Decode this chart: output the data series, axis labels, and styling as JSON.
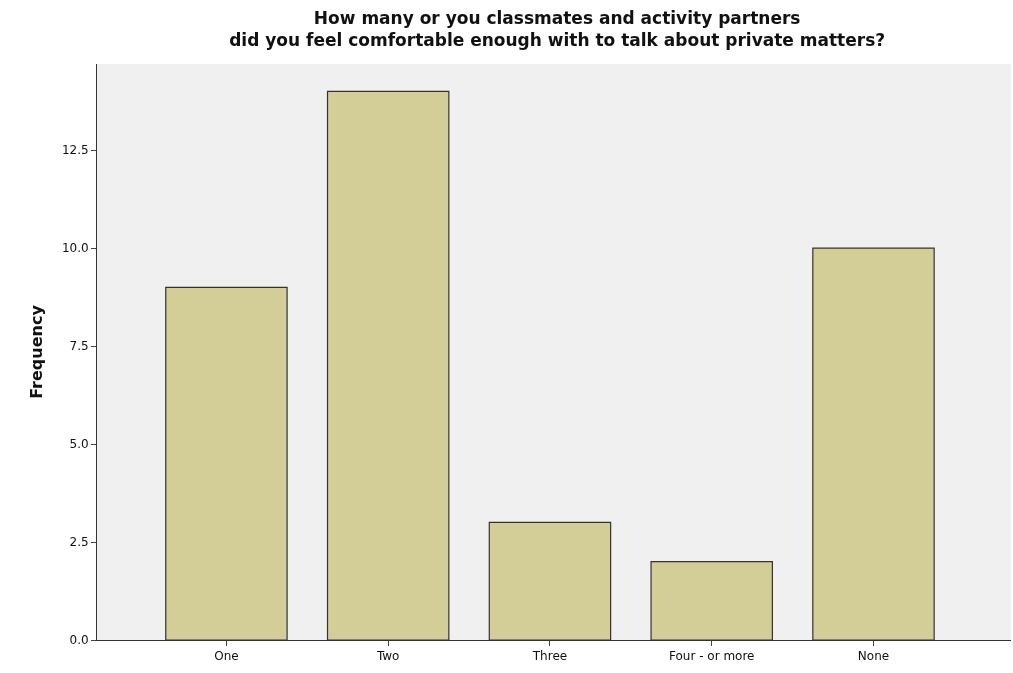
{
  "chart_data": {
    "type": "bar",
    "title": "How many or you classmates and activity partners\ndid you feel comfortable enough with to talk about private matters?",
    "ylabel": "Frequency",
    "categories": [
      "One",
      "Two",
      "Three",
      "Four - or more",
      "None"
    ],
    "values": [
      9,
      14,
      3,
      2,
      10
    ],
    "color": "#d3ce97",
    "ylim": [
      0,
      14.7
    ],
    "yticks": [
      {
        "value": 0,
        "label": "0.0"
      },
      {
        "value": 2.5,
        "label": "2.5"
      },
      {
        "value": 5,
        "label": "5.0"
      },
      {
        "value": 7.5,
        "label": "7.5"
      },
      {
        "value": 10,
        "label": "10.0"
      },
      {
        "value": 12.5,
        "label": "12.5"
      }
    ],
    "grid": false
  }
}
